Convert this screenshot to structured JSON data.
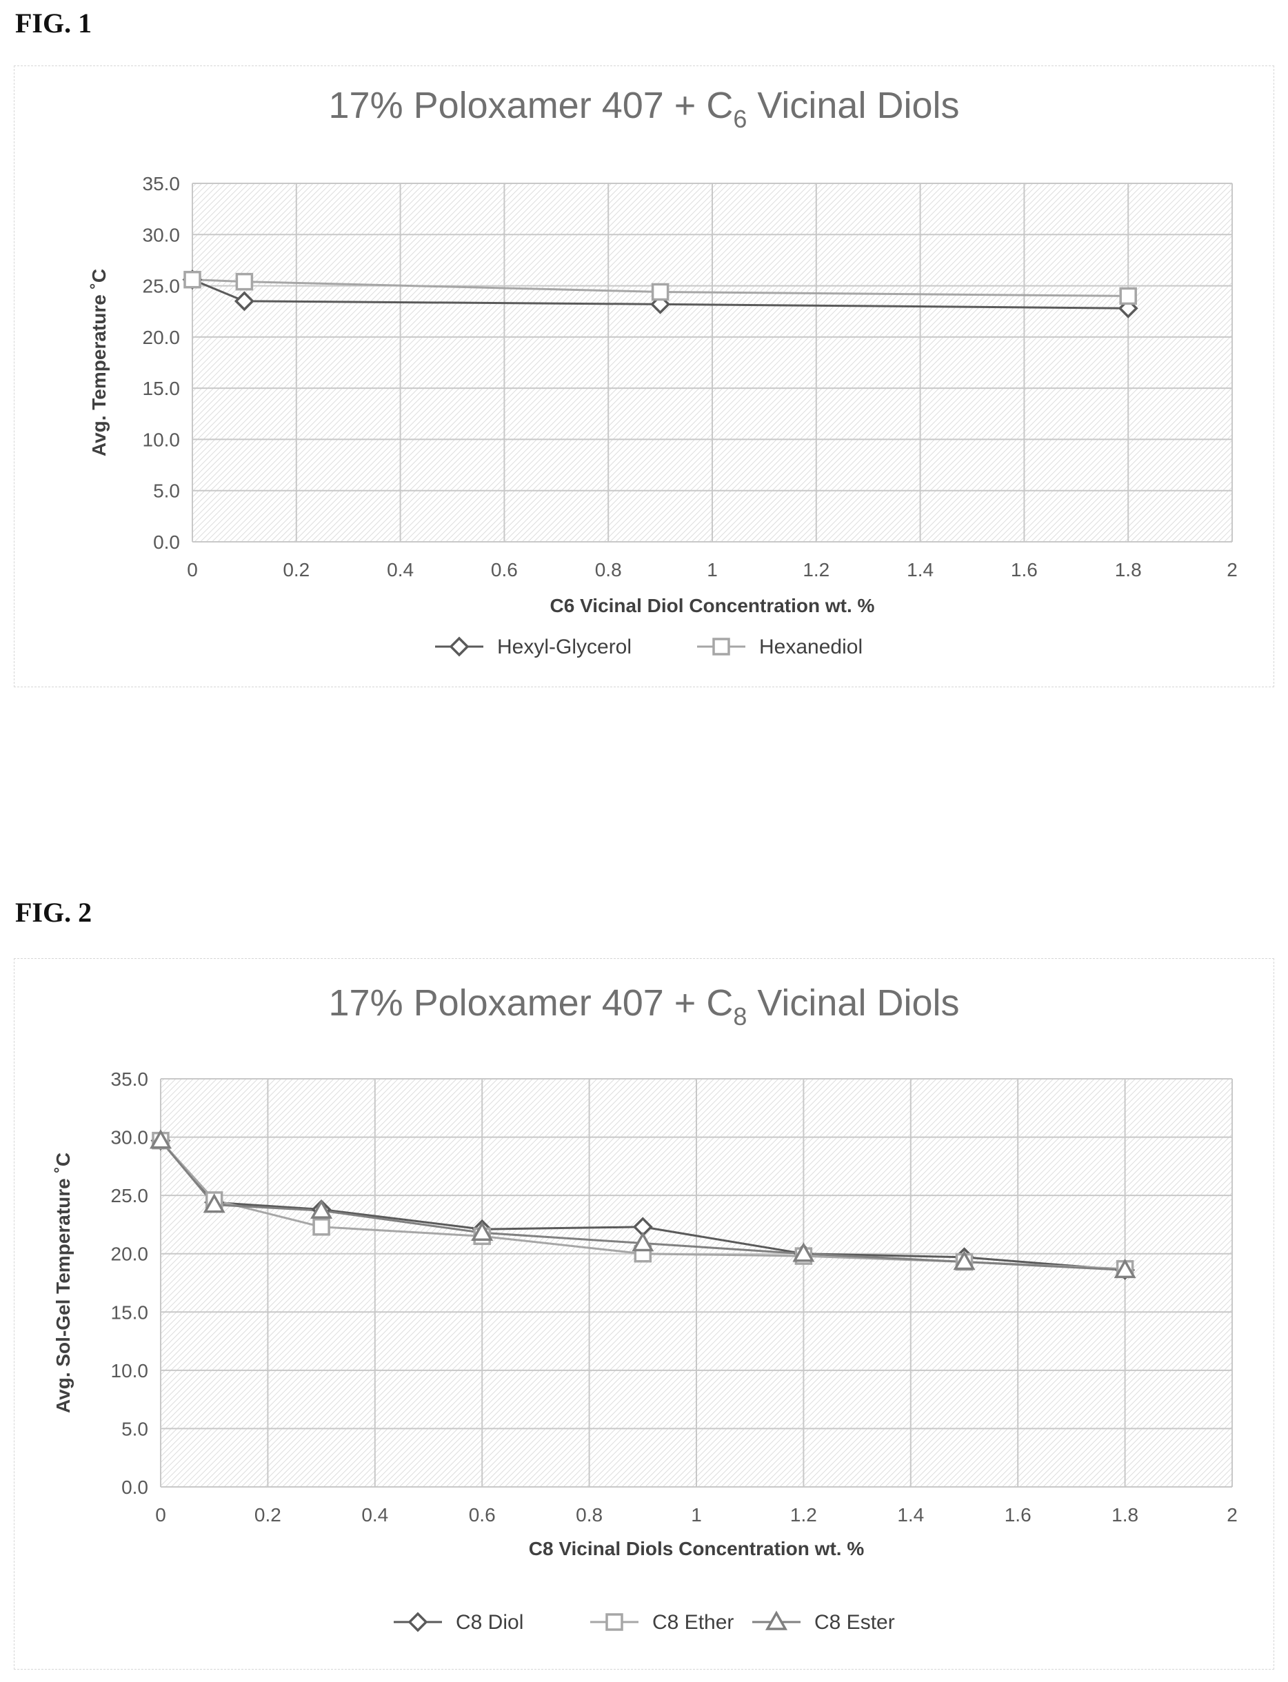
{
  "figures": [
    {
      "label": "FIG. 1",
      "chart_data": {
        "type": "line",
        "title_main": "17% Poloxamer 407 + C",
        "title_sub": "6",
        "title_rest": " Vicinal Diols",
        "xlabel": "C6 Vicinal Diol Concentration wt. %",
        "ylabel": "Avg. Temperature ˚C",
        "xlim": [
          0,
          2
        ],
        "ylim": [
          0,
          35
        ],
        "x_ticks": [
          "0",
          "0.2",
          "0.4",
          "0.6",
          "0.8",
          "1",
          "1.2",
          "1.4",
          "1.6",
          "1.8",
          "2"
        ],
        "y_ticks": [
          "0.0",
          "5.0",
          "10.0",
          "15.0",
          "20.0",
          "25.0",
          "30.0",
          "35.0"
        ],
        "grid": true,
        "legend_position": "bottom",
        "series": [
          {
            "name": "Hexyl-Glycerol",
            "marker": "diamond",
            "color": "#5a5a5a",
            "x": [
              0,
              0.1,
              0.9,
              1.8
            ],
            "y": [
              25.6,
              23.5,
              23.2,
              22.8
            ]
          },
          {
            "name": "Hexanediol",
            "marker": "square",
            "color": "#a6a6a6",
            "x": [
              0,
              0.1,
              0.9,
              1.8
            ],
            "y": [
              25.6,
              25.4,
              24.4,
              24.0
            ]
          }
        ]
      }
    },
    {
      "label": "FIG. 2",
      "chart_data": {
        "type": "line",
        "title_main": "17% Poloxamer 407 + C",
        "title_sub": "8",
        "title_rest": " Vicinal Diols",
        "xlabel": "C8 Vicinal Diols Concentration wt. %",
        "ylabel": "Avg. Sol-Gel Temperature ˚C",
        "xlim": [
          0,
          2
        ],
        "ylim": [
          0,
          35
        ],
        "x_ticks": [
          "0",
          "0.2",
          "0.4",
          "0.6",
          "0.8",
          "1",
          "1.2",
          "1.4",
          "1.6",
          "1.8",
          "2"
        ],
        "y_ticks": [
          "0.0",
          "5.0",
          "10.0",
          "15.0",
          "20.0",
          "25.0",
          "30.0",
          "35.0"
        ],
        "grid": true,
        "legend_position": "bottom",
        "series": [
          {
            "name": "C8 Diol",
            "marker": "diamond",
            "color": "#5a5a5a",
            "x": [
              0,
              0.1,
              0.3,
              0.6,
              0.9,
              1.2,
              1.5,
              1.8
            ],
            "y": [
              29.7,
              24.4,
              23.8,
              22.1,
              22.3,
              20.0,
              19.7,
              18.6
            ]
          },
          {
            "name": "C8 Ether",
            "marker": "square",
            "color": "#a6a6a6",
            "x": [
              0,
              0.1,
              0.3,
              0.6,
              0.9,
              1.2,
              1.5,
              1.8
            ],
            "y": [
              29.7,
              24.6,
              22.3,
              21.5,
              20.0,
              19.8,
              19.3,
              18.7
            ]
          },
          {
            "name": "C8 Ester",
            "marker": "triangle",
            "color": "#808080",
            "x": [
              0,
              0.1,
              0.3,
              0.6,
              0.9,
              1.2,
              1.5,
              1.8
            ],
            "y": [
              29.7,
              24.2,
              23.7,
              21.8,
              20.9,
              20.0,
              19.3,
              18.6
            ]
          }
        ]
      }
    }
  ]
}
